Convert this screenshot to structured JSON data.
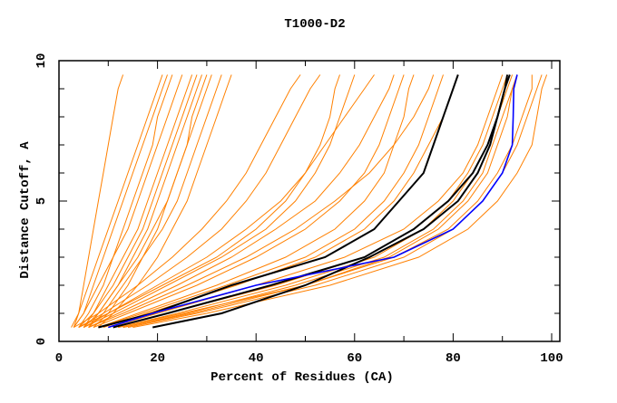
{
  "chart_data": {
    "type": "line",
    "title": "T1000-D2",
    "xlabel": "Percent of Residues (CA)",
    "ylabel": "Distance Cutoff, A",
    "xlim": [
      0,
      100
    ],
    "ylim": [
      0,
      10
    ],
    "x_ticks": [
      "0",
      "20",
      "40",
      "60",
      "80",
      "100"
    ],
    "y_ticks": [
      "0",
      "5",
      "10"
    ],
    "grid": false,
    "y_levels": [
      0.5,
      1,
      2,
      3,
      4,
      5,
      6,
      7,
      8,
      9,
      9.5
    ],
    "colors": {
      "orange": "#ff8000",
      "black": "#000000",
      "blue": "#0000ff"
    },
    "orange_series": [
      [
        3,
        5,
        7,
        9,
        11,
        13,
        15,
        17,
        19,
        21,
        22
      ],
      [
        4,
        6,
        9,
        11,
        14,
        16,
        18,
        20,
        22,
        24,
        25
      ],
      [
        5,
        7,
        10,
        13,
        16,
        18,
        20,
        22,
        24,
        26,
        27
      ],
      [
        3,
        5,
        8,
        11,
        13,
        15,
        17,
        19,
        20,
        22,
        23
      ],
      [
        6,
        8,
        12,
        15,
        18,
        20,
        22,
        24,
        26,
        28,
        29
      ],
      [
        4,
        7,
        11,
        14,
        17,
        19,
        21,
        23,
        25,
        27,
        28
      ],
      [
        7,
        10,
        14,
        17,
        20,
        22,
        24,
        26,
        28,
        30,
        31
      ],
      [
        5,
        8,
        12,
        16,
        19,
        22,
        24,
        26,
        27,
        29,
        30
      ],
      [
        3,
        4,
        6,
        8,
        10,
        12,
        14,
        16,
        18,
        20,
        21
      ],
      [
        6,
        9,
        13,
        17,
        21,
        24,
        26,
        28,
        30,
        32,
        33
      ],
      [
        8,
        11,
        16,
        20,
        23,
        26,
        28,
        30,
        32,
        34,
        35
      ],
      [
        2.5,
        4,
        5,
        6,
        7,
        8,
        9,
        10,
        11,
        12,
        13
      ],
      [
        5,
        10,
        20,
        30,
        38,
        45,
        50,
        54,
        58,
        62,
        64
      ],
      [
        6,
        12,
        24,
        35,
        44,
        52,
        57,
        61,
        64,
        67,
        68
      ],
      [
        4,
        9,
        18,
        26,
        33,
        38,
        42,
        45,
        48,
        51,
        53
      ],
      [
        7,
        14,
        28,
        40,
        50,
        57,
        62,
        65,
        67,
        69,
        70
      ],
      [
        5,
        11,
        22,
        33,
        42,
        48,
        52,
        55,
        57,
        59,
        60
      ],
      [
        3,
        8,
        16,
        23,
        29,
        34,
        38,
        41,
        44,
        47,
        49
      ],
      [
        8,
        16,
        32,
        46,
        56,
        62,
        66,
        68,
        70,
        71,
        72
      ],
      [
        6,
        13,
        26,
        38,
        48,
        56,
        63,
        68,
        72,
        75,
        76
      ],
      [
        4,
        10,
        21,
        32,
        40,
        46,
        50,
        53,
        55,
        56,
        57
      ],
      [
        12,
        24,
        46,
        64,
        74,
        80,
        84,
        87,
        89,
        91,
        92
      ],
      [
        13,
        26,
        48,
        66,
        76,
        82,
        86,
        88,
        90,
        92,
        93
      ],
      [
        11,
        22,
        44,
        62,
        72,
        79,
        83,
        86,
        88,
        90,
        91
      ],
      [
        14,
        28,
        52,
        70,
        80,
        86,
        90,
        93,
        95,
        97,
        98
      ],
      [
        15,
        30,
        55,
        73,
        83,
        89,
        93,
        96,
        97,
        98,
        99
      ],
      [
        10,
        20,
        40,
        58,
        70,
        77,
        82,
        85,
        87,
        89,
        90
      ],
      [
        12,
        25,
        50,
        68,
        79,
        85,
        89,
        92,
        94,
        96,
        96
      ],
      [
        9,
        18,
        36,
        52,
        62,
        68,
        72,
        75,
        78,
        80,
        81
      ],
      [
        13,
        27,
        50,
        67,
        77,
        83,
        87,
        89,
        91,
        92,
        93
      ],
      [
        8,
        17,
        34,
        50,
        60,
        66,
        70,
        73,
        75,
        77,
        78
      ]
    ],
    "black_series": [
      [
        8,
        19,
        35,
        54,
        64,
        69,
        74,
        76,
        78,
        80,
        81
      ],
      [
        11,
        22,
        43,
        62,
        72,
        79,
        84,
        87,
        89,
        90.5,
        91
      ],
      [
        19,
        33,
        50,
        63,
        74,
        81,
        85,
        87.5,
        89,
        90.5,
        91.5
      ]
    ],
    "blue_series": [
      10,
      19,
      40,
      68,
      80,
      86,
      90,
      92,
      92.2,
      92.3,
      93
    ]
  }
}
